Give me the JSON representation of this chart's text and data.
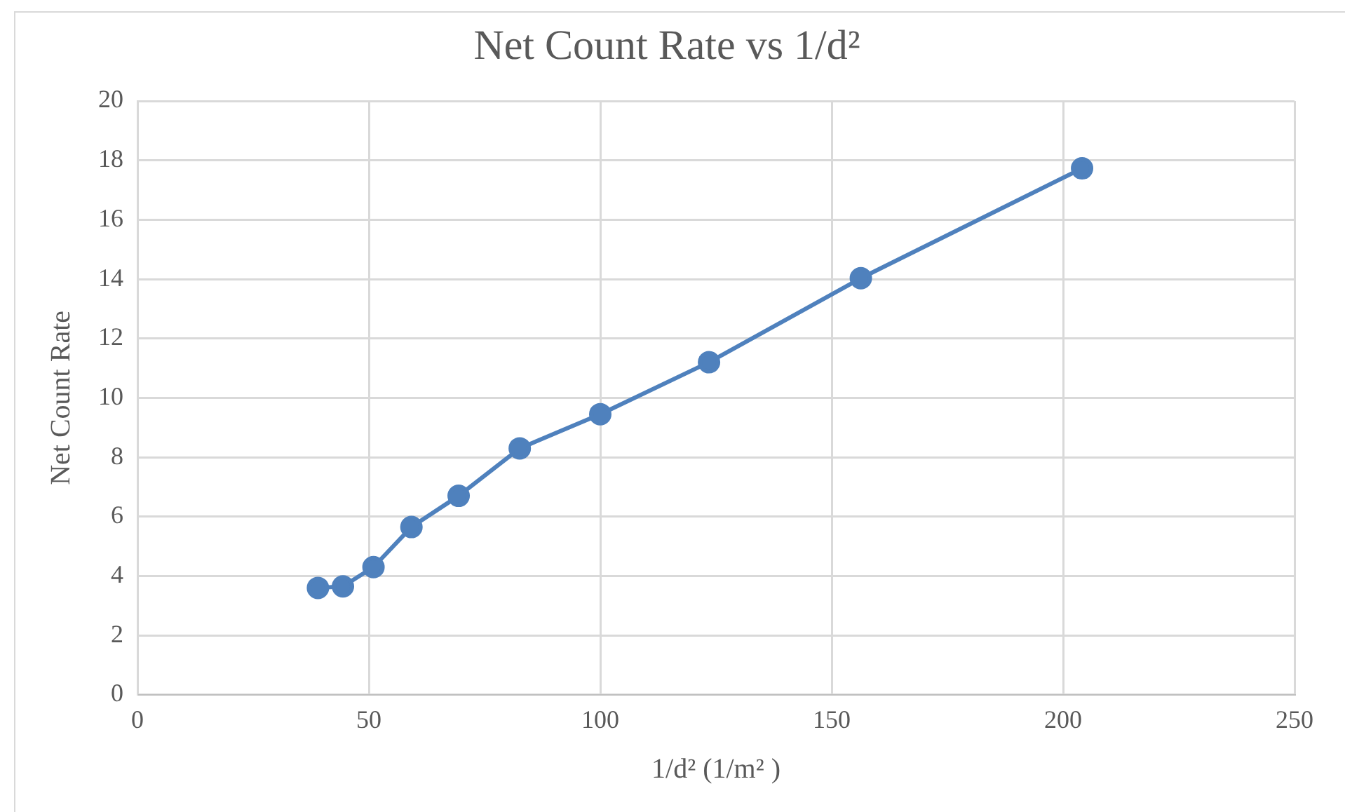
{
  "chart_data": {
    "type": "line",
    "title": "Net Count Rate vs 1/d²",
    "xlabel": "1/d² (1/m² )",
    "ylabel": "Net Count Rate",
    "x": [
      39,
      44.4,
      51,
      59.2,
      69.4,
      82.6,
      100,
      123.5,
      156.3,
      204.1
    ],
    "series": [
      {
        "color": "#4f81bd",
        "values": [
          3.6,
          3.65,
          4.3,
          5.65,
          6.7,
          8.3,
          9.45,
          11.2,
          14.03,
          17.73
        ]
      }
    ],
    "xlim": [
      0,
      250
    ],
    "xticks": [
      0,
      50,
      100,
      150,
      200,
      250
    ],
    "ylim": [
      0,
      20
    ],
    "yticks": [
      0,
      2,
      4,
      6,
      8,
      10,
      12,
      14,
      16,
      18,
      20
    ],
    "grid": true,
    "legend": false,
    "marker": "circle",
    "line_style": "solid"
  }
}
